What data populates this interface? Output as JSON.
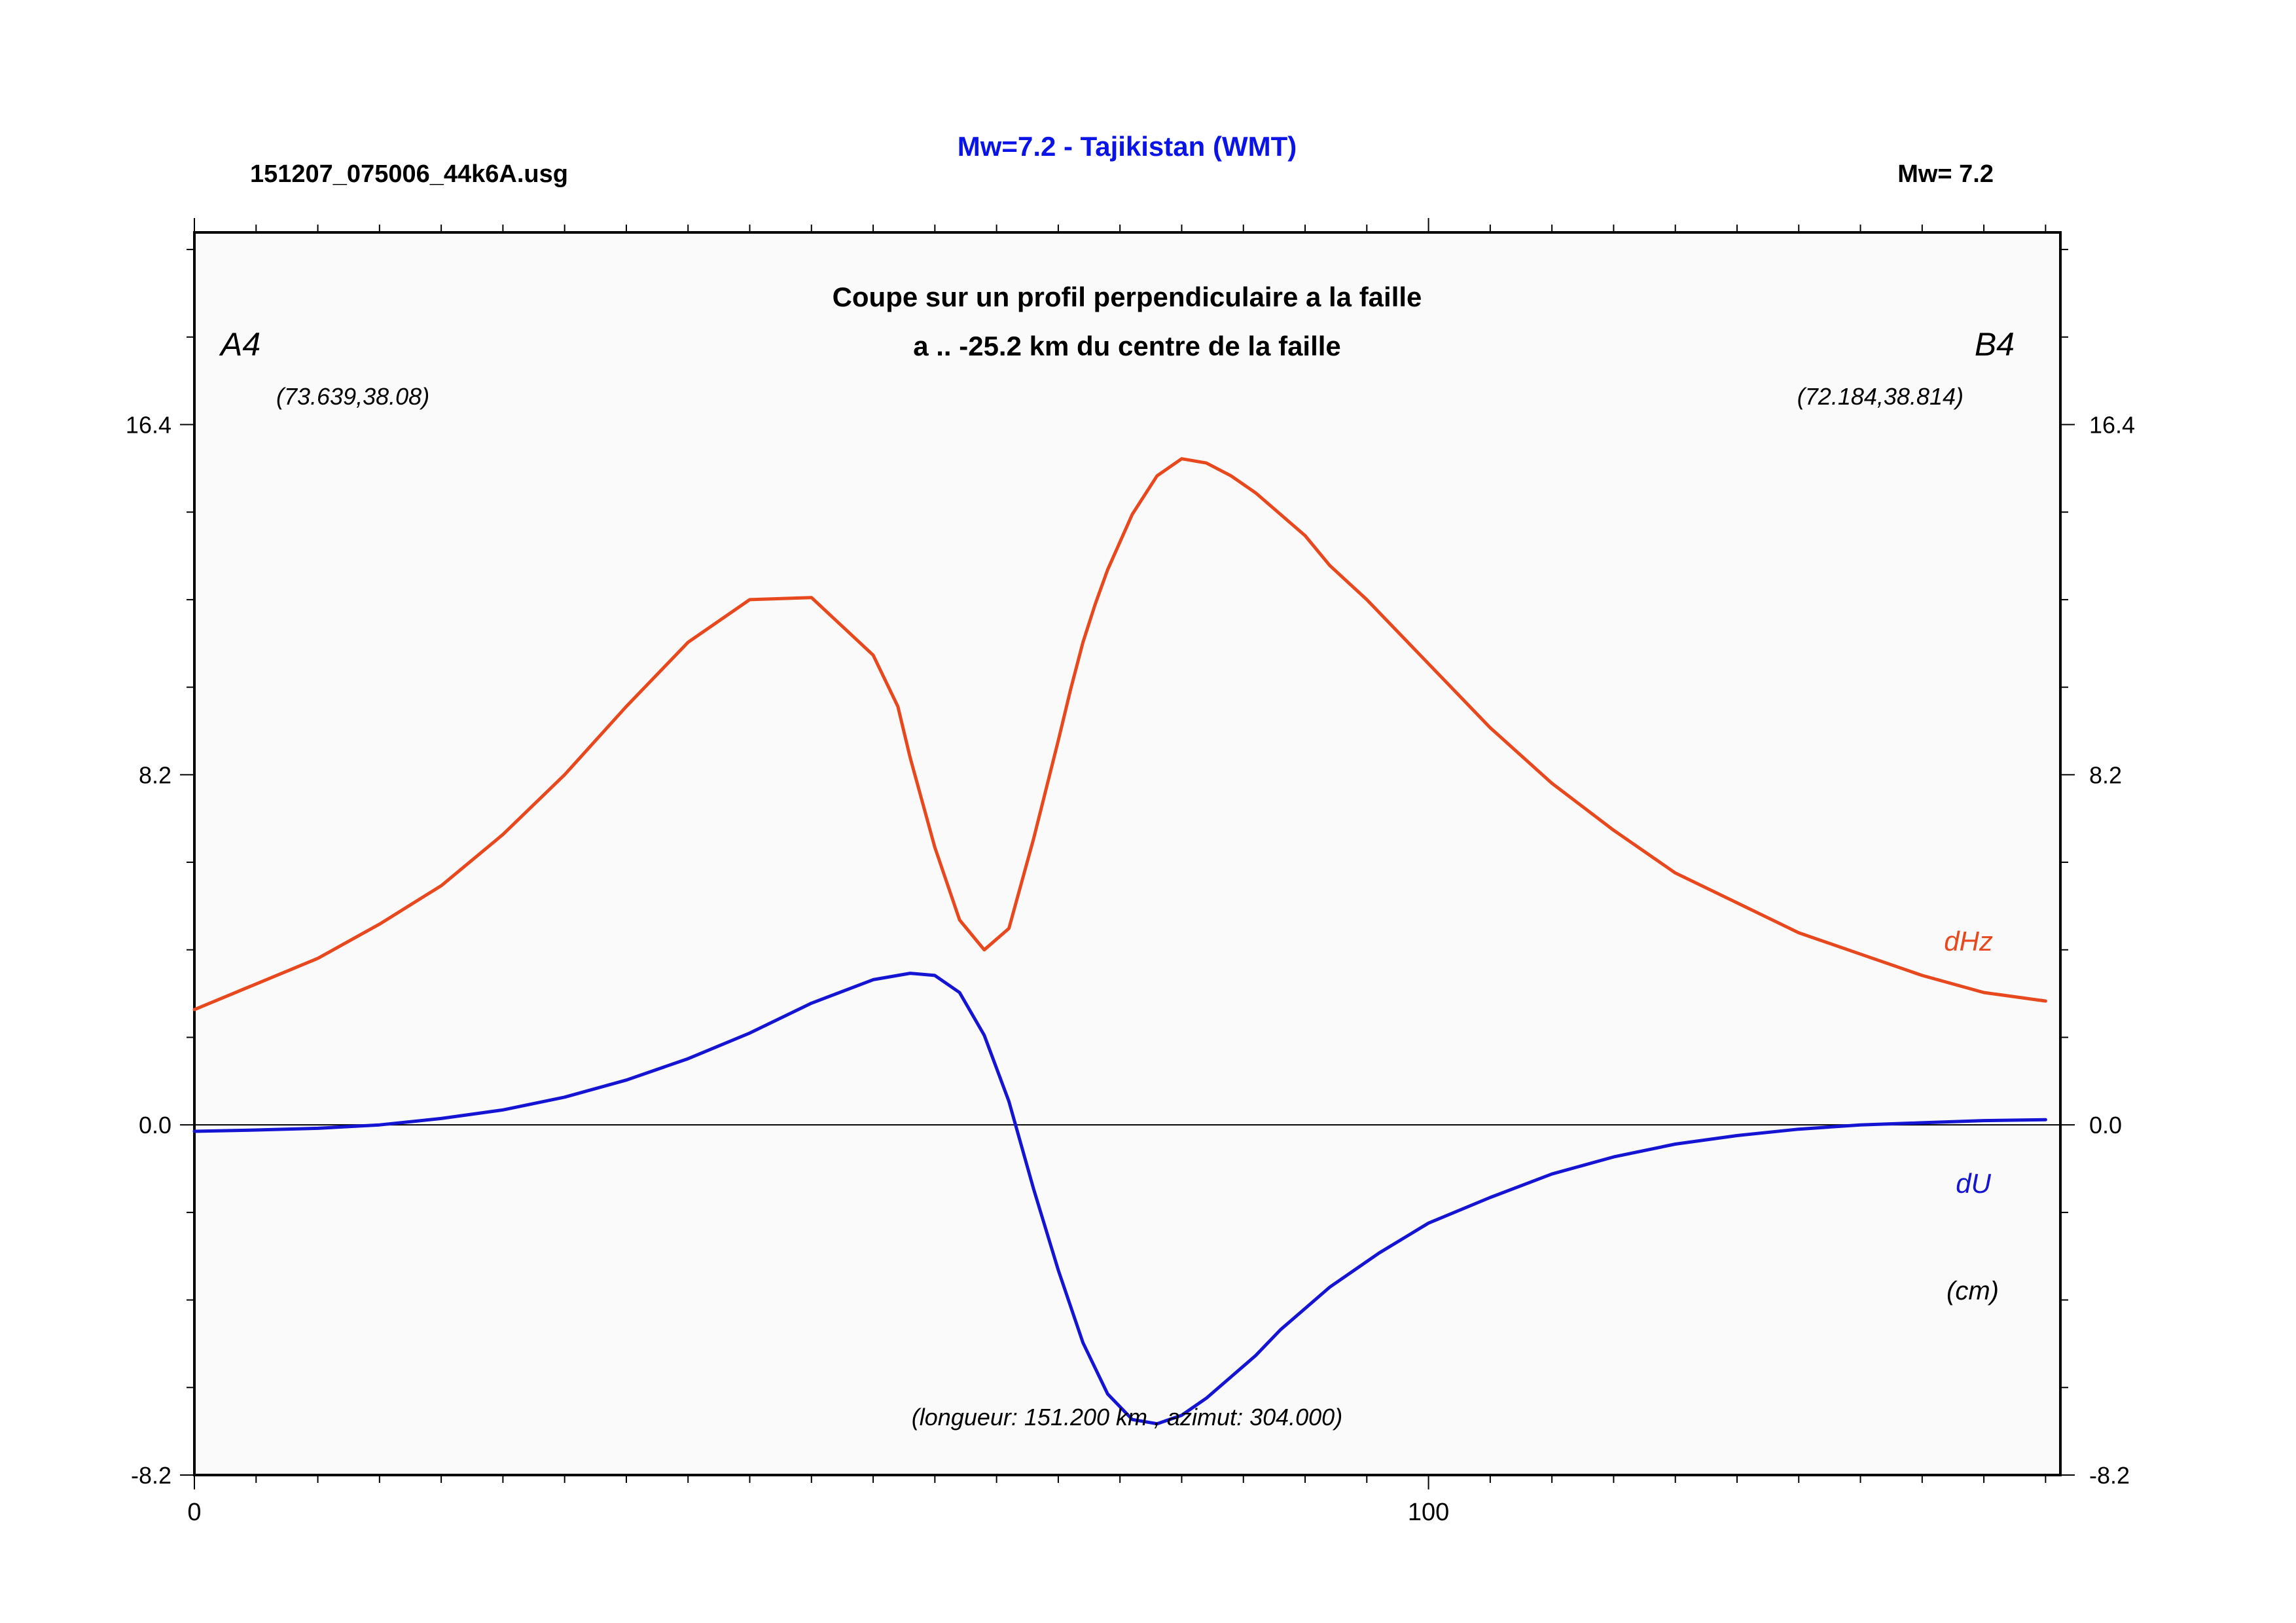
{
  "header": {
    "filename": "151207_075006_44k6A.usg",
    "title": "Mw=7.2 - Tajikistan (WMT)",
    "magnitude": "Mw= 7.2"
  },
  "colors": {
    "title": "#0a14e6",
    "dHz": "#e8481e",
    "dU": "#1414d2",
    "plot_bg": "#fafafa",
    "axis": "#000000"
  },
  "chart_data": {
    "type": "line",
    "subtitle_line1": "Coupe sur un profil perpendiculaire a la faille",
    "subtitle_line2": "a .. -25.2 km du centre de la faille",
    "point_a_label": "A4",
    "point_a_coords": "(73.639,38.08)",
    "point_b_label": "B4",
    "point_b_coords": "(72.184,38.814)",
    "unit_label": "(cm)",
    "profile_info": "(longueur: 151.200 km , azimut: 304.000)",
    "xlim": [
      0,
      151.2
    ],
    "ylim": [
      -8.2,
      20.9
    ],
    "x_ticks": [
      0,
      100
    ],
    "x_tick_labels": [
      "0",
      "100"
    ],
    "y_ticks": [
      16.4,
      8.2,
      0.0,
      -8.2
    ],
    "y_tick_labels": [
      "16.4",
      "8.2",
      "0.0",
      "-8.2"
    ],
    "zero_line": true,
    "grid": false,
    "series": [
      {
        "name": "dHz",
        "x": [
          0,
          5,
          10,
          15,
          20,
          25,
          30,
          35,
          40,
          45,
          50,
          55,
          57,
          58,
          60,
          62,
          64,
          66,
          68,
          70,
          71,
          72,
          73,
          74,
          76,
          78,
          80,
          82,
          84,
          86,
          88,
          90,
          92,
          95,
          100,
          105,
          110,
          115,
          120,
          125,
          130,
          135,
          140,
          145,
          150
        ],
        "y": [
          2.7,
          3.3,
          3.9,
          4.7,
          5.6,
          6.8,
          8.2,
          9.8,
          11.3,
          12.3,
          12.35,
          11.0,
          9.8,
          8.6,
          6.5,
          4.8,
          4.1,
          4.6,
          6.7,
          9.0,
          10.2,
          11.3,
          12.2,
          13.0,
          14.3,
          15.2,
          15.6,
          15.5,
          15.2,
          14.8,
          14.3,
          13.8,
          13.1,
          12.3,
          10.8,
          9.3,
          8.0,
          6.9,
          5.9,
          5.2,
          4.5,
          4.0,
          3.5,
          3.1,
          2.9
        ]
      },
      {
        "name": "dU",
        "x": [
          0,
          5,
          10,
          15,
          20,
          25,
          30,
          35,
          40,
          45,
          50,
          55,
          58,
          60,
          62,
          64,
          66,
          68,
          70,
          72,
          74,
          76,
          78,
          80,
          82,
          84,
          86,
          88,
          90,
          92,
          94,
          96,
          100,
          105,
          110,
          115,
          120,
          125,
          130,
          135,
          140,
          145,
          150
        ],
        "y": [
          -0.15,
          -0.12,
          -0.08,
          0.0,
          0.15,
          0.35,
          0.65,
          1.05,
          1.55,
          2.15,
          2.85,
          3.4,
          3.55,
          3.5,
          3.1,
          2.1,
          0.55,
          -1.5,
          -3.4,
          -5.1,
          -6.3,
          -6.9,
          -7.0,
          -6.8,
          -6.4,
          -5.9,
          -5.4,
          -4.8,
          -4.3,
          -3.8,
          -3.4,
          -3.0,
          -2.3,
          -1.7,
          -1.15,
          -0.75,
          -0.45,
          -0.25,
          -0.1,
          0.0,
          0.05,
          0.1,
          0.12
        ]
      }
    ]
  }
}
